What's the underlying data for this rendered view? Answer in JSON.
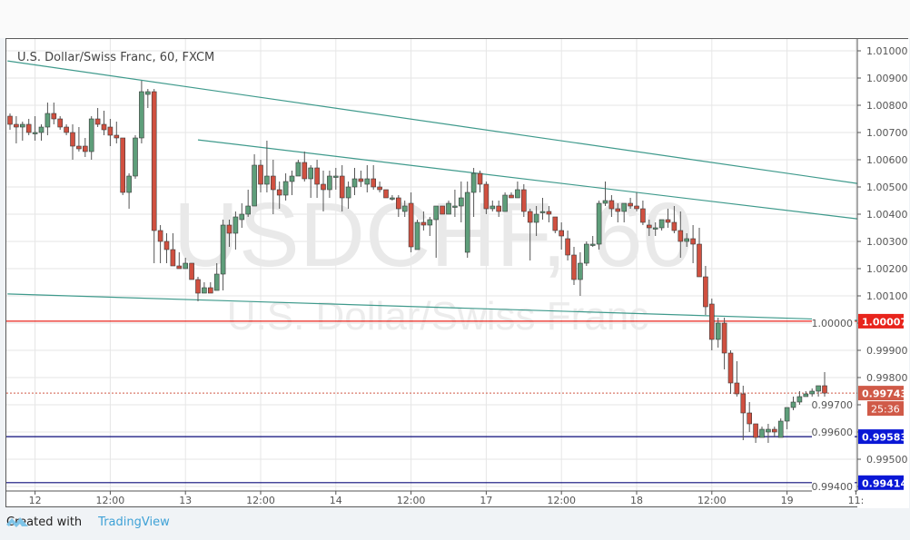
{
  "chart_data": {
    "type": "candlestick",
    "title": "U.S. Dollar/Swiss Franc, 60, FXCM",
    "watermark": {
      "symbol": "USDCHF, 60",
      "description": "U.S. Dollar/Swiss Franc"
    },
    "ylim": [
      0.9937,
      1.0104
    ],
    "y_ticks": [
      "1.01000",
      "1.00900",
      "1.00800",
      "1.00700",
      "1.00600",
      "1.00500",
      "1.00400",
      "1.00300",
      "1.00200",
      "1.00100",
      "1.00000",
      "0.99900",
      "0.99800",
      "0.99700",
      "0.99600",
      "0.99500",
      "0.99400"
    ],
    "x_ticks": [
      {
        "label": "12",
        "bar": 5
      },
      {
        "label": "12:00",
        "bar": 17
      },
      {
        "label": "13",
        "bar": 29
      },
      {
        "label": "12:00",
        "bar": 41
      },
      {
        "label": "14",
        "bar": 53
      },
      {
        "label": "12:00",
        "bar": 65
      },
      {
        "label": "17",
        "bar": 77
      },
      {
        "label": "12:00",
        "bar": 89
      },
      {
        "label": "18",
        "bar": 101
      },
      {
        "label": "12:00",
        "bar": 113
      },
      {
        "label": "19",
        "bar": 125
      },
      {
        "label": "11:",
        "bar": 136
      }
    ],
    "grid": true,
    "colors": {
      "up": "#5e9e7a",
      "down": "#d05040",
      "trendline": "#3f9a8c",
      "support": "#0b0b7a",
      "resistance": "#e8241c",
      "last_price": "#d05a48",
      "axis_label_blue": "#0a17d6"
    },
    "ohlc": [
      [
        1.0076,
        1.0077,
        1.0071,
        1.0073
      ],
      [
        1.0073,
        1.0076,
        1.0066,
        1.0072
      ],
      [
        1.0072,
        1.0074,
        1.0067,
        1.0073
      ],
      [
        1.0073,
        1.0075,
        1.0069,
        1.007
      ],
      [
        1.007,
        1.0076,
        1.0067,
        1.007
      ],
      [
        1.007,
        1.0073,
        1.0067,
        1.0072
      ],
      [
        1.0072,
        1.0081,
        1.0069,
        1.0077
      ],
      [
        1.0077,
        1.0081,
        1.0073,
        1.0075
      ],
      [
        1.0075,
        1.0076,
        1.0071,
        1.0072
      ],
      [
        1.0072,
        1.0073,
        1.0069,
        1.007
      ],
      [
        1.007,
        1.0073,
        1.006,
        1.0065
      ],
      [
        1.0065,
        1.0072,
        1.0063,
        1.0064
      ],
      [
        1.0065,
        1.0068,
        1.0061,
        1.0063
      ],
      [
        1.0063,
        1.0076,
        1.006,
        1.0075
      ],
      [
        1.0075,
        1.0079,
        1.0072,
        1.0073
      ],
      [
        1.0073,
        1.0078,
        1.0069,
        1.0071
      ],
      [
        1.0072,
        1.0075,
        1.0065,
        1.0069
      ],
      [
        1.0069,
        1.0074,
        1.0066,
        1.0068
      ],
      [
        1.0068,
        1.0068,
        1.0047,
        1.0048
      ],
      [
        1.0048,
        1.0055,
        1.0042,
        1.0054
      ],
      [
        1.0054,
        1.0069,
        1.0053,
        1.0068
      ],
      [
        1.0068,
        1.0089,
        1.0066,
        1.0085
      ],
      [
        1.0084,
        1.0086,
        1.0079,
        1.0085
      ],
      [
        1.0085,
        1.0086,
        1.0022,
        1.0034
      ],
      [
        1.0034,
        1.0036,
        1.0022,
        1.003
      ],
      [
        1.003,
        1.0033,
        1.0022,
        1.0027
      ],
      [
        1.0027,
        1.0033,
        1.0021,
        1.0021
      ],
      [
        1.0021,
        1.0026,
        1.002,
        1.002
      ],
      [
        1.002,
        1.0024,
        1.002,
        1.0022
      ],
      [
        1.0022,
        1.0022,
        1.0016,
        1.0016
      ],
      [
        1.0016,
        1.0017,
        1.0008,
        1.0011
      ],
      [
        1.0011,
        1.0015,
        1.0011,
        1.0013
      ],
      [
        1.0013,
        1.0015,
        1.0011,
        1.0011
      ],
      [
        1.0012,
        1.0022,
        1.0012,
        1.0018
      ],
      [
        1.0018,
        1.0038,
        1.0012,
        1.0036
      ],
      [
        1.0036,
        1.0038,
        1.0028,
        1.0033
      ],
      [
        1.0033,
        1.0041,
        1.0027,
        1.0039
      ],
      [
        1.0038,
        1.0044,
        1.0035,
        1.004
      ],
      [
        1.004,
        1.0049,
        1.0039,
        1.0043
      ],
      [
        1.0043,
        1.0062,
        1.0043,
        1.0058
      ],
      [
        1.0058,
        1.006,
        1.0048,
        1.0051
      ],
      [
        1.0051,
        1.0067,
        1.0048,
        1.0054
      ],
      [
        1.0054,
        1.006,
        1.004,
        1.0049
      ],
      [
        1.0049,
        1.0052,
        1.0042,
        1.0047
      ],
      [
        1.0047,
        1.0055,
        1.0045,
        1.0052
      ],
      [
        1.0052,
        1.0056,
        1.0047,
        1.0054
      ],
      [
        1.0054,
        1.006,
        1.0054,
        1.0059
      ],
      [
        1.0059,
        1.0063,
        1.0052,
        1.0053
      ],
      [
        1.0053,
        1.0058,
        1.0046,
        1.0057
      ],
      [
        1.0057,
        1.006,
        1.0046,
        1.0051
      ],
      [
        1.0051,
        1.0056,
        1.0041,
        1.0049
      ],
      [
        1.0049,
        1.0056,
        1.0046,
        1.0054
      ],
      [
        1.0054,
        1.0057,
        1.0049,
        1.0054
      ],
      [
        1.0054,
        1.0058,
        1.0041,
        1.0046
      ],
      [
        1.0046,
        1.0052,
        1.0042,
        1.005
      ],
      [
        1.005,
        1.0057,
        1.0047,
        1.0053
      ],
      [
        1.0053,
        1.0056,
        1.005,
        1.0052
      ],
      [
        1.0051,
        1.0058,
        1.0048,
        1.0053
      ],
      [
        1.0053,
        1.0058,
        1.0049,
        1.005
      ],
      [
        1.005,
        1.0052,
        1.0048,
        1.0049
      ],
      [
        1.0049,
        1.0049,
        1.0046,
        1.0046
      ],
      [
        1.0046,
        1.0047,
        1.0045,
        1.0046
      ],
      [
        1.0046,
        1.0047,
        1.0039,
        1.0042
      ],
      [
        1.0041,
        1.0045,
        1.0039,
        1.0043
      ],
      [
        1.0044,
        1.0048,
        1.0026,
        1.0028
      ],
      [
        1.0027,
        1.0038,
        1.0027,
        1.0037
      ],
      [
        1.0037,
        1.0041,
        1.0034,
        1.0036
      ],
      [
        1.0036,
        1.0039,
        1.0032,
        1.0038
      ],
      [
        1.0038,
        1.0043,
        1.0024,
        1.0043
      ],
      [
        1.0043,
        1.0043,
        1.004,
        1.004
      ],
      [
        1.004,
        1.0045,
        1.004,
        1.0044
      ],
      [
        1.0043,
        1.0049,
        1.0039,
        1.0043
      ],
      [
        1.0043,
        1.0052,
        1.0037,
        1.0046
      ],
      [
        1.0026,
        1.0052,
        1.0024,
        1.0048
      ],
      [
        1.0048,
        1.0057,
        1.0039,
        1.0055
      ],
      [
        1.0055,
        1.0056,
        1.0048,
        1.0051
      ],
      [
        1.0051,
        1.0052,
        1.004,
        1.0042
      ],
      [
        1.0042,
        1.0045,
        1.0041,
        1.0043
      ],
      [
        1.0043,
        1.0045,
        1.0039,
        1.0041
      ],
      [
        1.0041,
        1.0048,
        1.0041,
        1.0047
      ],
      [
        1.0047,
        1.0048,
        1.0046,
        1.0046
      ],
      [
        1.0046,
        1.0052,
        1.0046,
        1.0049
      ],
      [
        1.0049,
        1.0051,
        1.0039,
        1.0041
      ],
      [
        1.0041,
        1.0042,
        1.0023,
        1.0037
      ],
      [
        1.0037,
        1.0043,
        1.0032,
        1.004
      ],
      [
        1.0041,
        1.0046,
        1.0038,
        1.0041
      ],
      [
        1.0041,
        1.0043,
        1.0037,
        1.004
      ],
      [
        1.0039,
        1.0039,
        1.0033,
        1.0034
      ],
      [
        1.0034,
        1.0037,
        1.0027,
        1.0032
      ],
      [
        1.0031,
        1.0034,
        1.0023,
        1.0025
      ],
      [
        1.0025,
        1.0028,
        1.0014,
        1.0016
      ],
      [
        1.0016,
        1.0026,
        1.001,
        1.0022
      ],
      [
        1.0022,
        1.003,
        1.0021,
        1.0029
      ],
      [
        1.0029,
        1.0032,
        1.0028,
        1.0029
      ],
      [
        1.0029,
        1.0045,
        1.0027,
        1.0044
      ],
      [
        1.0044,
        1.0052,
        1.0043,
        1.0045
      ],
      [
        1.0045,
        1.0047,
        1.0039,
        1.0042
      ],
      [
        1.0042,
        1.0044,
        1.0037,
        1.0041
      ],
      [
        1.0041,
        1.0044,
        1.0037,
        1.0044
      ],
      [
        1.0044,
        1.0046,
        1.0042,
        1.0043
      ],
      [
        1.0043,
        1.0048,
        1.0041,
        1.0042
      ],
      [
        1.0042,
        1.0045,
        1.0036,
        1.0037
      ],
      [
        1.0036,
        1.0038,
        1.0032,
        1.0035
      ],
      [
        1.0035,
        1.0037,
        1.0032,
        1.0035
      ],
      [
        1.0035,
        1.0038,
        1.0034,
        1.0038
      ],
      [
        1.0038,
        1.0042,
        1.0035,
        1.0037
      ],
      [
        1.0037,
        1.0043,
        1.0033,
        1.0034
      ],
      [
        1.0034,
        1.0041,
        1.0024,
        1.003
      ],
      [
        1.003,
        1.0033,
        1.0028,
        1.0031
      ],
      [
        1.0031,
        1.0036,
        1.0022,
        1.0029
      ],
      [
        1.0029,
        1.0035,
        1.0017,
        1.0017
      ],
      [
        1.0017,
        1.0021,
        1.0003,
        1.0006
      ],
      [
        1.0007,
        1.0009,
        0.999,
        0.9994
      ],
      [
        0.9994,
        1.0002,
        0.9991,
        1.0
      ],
      [
        1.0,
        1.0002,
        0.9983,
        0.9989
      ],
      [
        0.9989,
        0.999,
        0.9974,
        0.9978
      ],
      [
        0.9978,
        0.9986,
        0.9973,
        0.9974
      ],
      [
        0.9974,
        0.9977,
        0.9957,
        0.9967
      ],
      [
        0.9967,
        0.9971,
        0.996,
        0.9963
      ],
      [
        0.9963,
        0.9963,
        0.9956,
        0.9958
      ],
      [
        0.9958,
        0.9962,
        0.9958,
        0.9961
      ],
      [
        0.996,
        0.9963,
        0.9956,
        0.9961
      ],
      [
        0.9961,
        0.9962,
        0.9958,
        0.996
      ],
      [
        0.9958,
        0.9965,
        0.9958,
        0.9964
      ],
      [
        0.9964,
        0.9969,
        0.9961,
        0.9969
      ],
      [
        0.9969,
        0.9973,
        0.9968,
        0.9971
      ],
      [
        0.9971,
        0.9975,
        0.997,
        0.9973
      ],
      [
        0.9973,
        0.9975,
        0.9973,
        0.9974
      ],
      [
        0.9974,
        0.9976,
        0.9973,
        0.9975
      ],
      [
        0.9975,
        0.9977,
        0.9973,
        0.9977
      ],
      [
        0.9977,
        0.9982,
        0.9973,
        0.99743
      ]
    ],
    "trendlines": [
      {
        "from": [
          0.6,
          1.00963
        ],
        "to": [
          136.2,
          1.00513
        ]
      },
      {
        "from": [
          31,
          1.00673
        ],
        "to": [
          136.2,
          1.00383
        ]
      },
      {
        "from": [
          0.6,
          1.00107
        ],
        "to": [
          136.2,
          1.0001
        ]
      }
    ],
    "horizontal_lines": [
      {
        "price": 1.00007,
        "label": "1.00007",
        "color": "#e8241c"
      },
      {
        "price": 0.99583,
        "label": "0.99583",
        "color": "#0b0b7a",
        "label_color": "#0a17d6"
      },
      {
        "price": 0.99414,
        "label": "0.99414",
        "color": "#0b0b7a",
        "label_color": "#0a17d6"
      }
    ],
    "last_price": {
      "price": 0.99743,
      "label": "0.99743",
      "countdown": "25:36"
    }
  },
  "footer": {
    "created_with": "Created with",
    "brand": "TradingView"
  }
}
